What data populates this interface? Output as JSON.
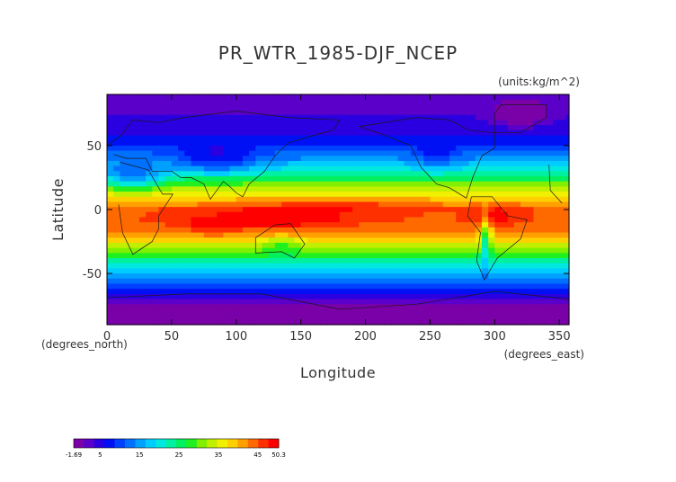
{
  "chart_data": {
    "type": "heatmap",
    "title": "PR_WTR_1985-DJF_NCEP",
    "units_label": "(units:kg/m^2)",
    "xlabel": "Longitude",
    "ylabel": "Latitude",
    "x_unit_label": "(degrees_east)",
    "y_unit_label": "(degrees_north)",
    "xlim": [
      0,
      357.5
    ],
    "ylim": [
      -90,
      90
    ],
    "x_ticks": [
      0,
      50,
      100,
      150,
      200,
      250,
      300,
      350
    ],
    "y_ticks": [
      -50,
      0,
      50
    ],
    "colorbar": {
      "min": -1.69,
      "max": 50.3,
      "tick_labels": [
        "-1.69",
        "5",
        "15",
        "25",
        "35",
        "45",
        "50.3"
      ],
      "tick_values": [
        -1.69,
        5,
        15,
        25,
        35,
        45,
        50.3
      ],
      "colors": [
        "#7a00a8",
        "#5b00c8",
        "#2a00e0",
        "#0010f5",
        "#0040ff",
        "#0070ff",
        "#00a0ff",
        "#00ccff",
        "#00e8e0",
        "#00f0a0",
        "#00f060",
        "#20f020",
        "#80f000",
        "#c0f000",
        "#f0f000",
        "#ffd000",
        "#ffa000",
        "#ff6a00",
        "#ff3000",
        "#ff0000"
      ]
    },
    "value_grid_note": "approx zonal-mean profile with regional perturbations",
    "lat_profile": [
      [
        -90,
        1
      ],
      [
        -80,
        3
      ],
      [
        -70,
        5
      ],
      [
        -60,
        10
      ],
      [
        -50,
        16
      ],
      [
        -40,
        24
      ],
      [
        -30,
        33
      ],
      [
        -20,
        41
      ],
      [
        -10,
        45
      ],
      [
        0,
        45
      ],
      [
        10,
        38
      ],
      [
        20,
        30
      ],
      [
        30,
        21
      ],
      [
        40,
        14
      ],
      [
        50,
        9
      ],
      [
        60,
        6
      ],
      [
        70,
        4
      ],
      [
        80,
        3
      ],
      [
        90,
        2
      ]
    ],
    "grid": false,
    "coastlines": true
  }
}
